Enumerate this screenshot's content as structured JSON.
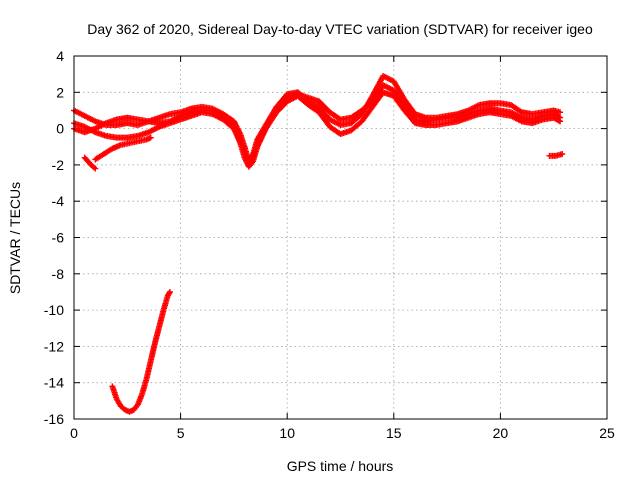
{
  "chart_data": {
    "type": "scatter",
    "title": "Day 362 of 2020, Sidereal Day-to-day VTEC variation (SDTVAR) for receiver igeo",
    "xlabel": "GPS time / hours",
    "ylabel": "SDTVAR / TECUs",
    "xlim": [
      0,
      25
    ],
    "ylim": [
      -16,
      4
    ],
    "grid": true,
    "x_ticks": [
      0,
      5,
      10,
      15,
      20,
      25
    ],
    "y_ticks": [
      -16,
      -14,
      -12,
      -10,
      -8,
      -6,
      -4,
      -2,
      0,
      2,
      4
    ],
    "x_tick_labels": [
      "0",
      "5",
      "10",
      "15",
      "20",
      "25"
    ],
    "y_tick_labels": [
      "-16",
      "-14",
      "-12",
      "-10",
      "-8",
      "-6",
      "-4",
      "-2",
      "0",
      "2",
      "4"
    ],
    "marker": "+",
    "color": "#ff0000",
    "series": [
      {
        "name": "track-1",
        "points": [
          [
            0.0,
            1.0
          ],
          [
            0.5,
            0.7
          ],
          [
            1.0,
            0.4
          ],
          [
            1.5,
            0.2
          ],
          [
            2.0,
            0.2
          ],
          [
            2.5,
            0.3
          ],
          [
            3.0,
            0.2
          ],
          [
            3.5,
            0.4
          ],
          [
            4.0,
            0.6
          ],
          [
            4.5,
            0.8
          ],
          [
            5.0,
            0.9
          ],
          [
            5.5,
            1.1
          ],
          [
            6.0,
            1.2
          ],
          [
            6.5,
            1.1
          ],
          [
            7.0,
            0.8
          ],
          [
            7.5,
            0.4
          ],
          [
            7.8,
            -0.3
          ],
          [
            8.0,
            -1.0
          ],
          [
            8.2,
            -1.8
          ],
          [
            8.4,
            -1.4
          ],
          [
            8.6,
            -0.6
          ],
          [
            9.0,
            0.2
          ],
          [
            9.5,
            1.2
          ],
          [
            10.0,
            1.9
          ],
          [
            10.5,
            2.0
          ],
          [
            11.0,
            1.5
          ],
          [
            11.5,
            1.2
          ],
          [
            12.0,
            0.5
          ],
          [
            12.5,
            0.2
          ],
          [
            13.0,
            0.3
          ],
          [
            13.5,
            0.8
          ],
          [
            14.0,
            1.8
          ],
          [
            14.5,
            2.9
          ],
          [
            15.0,
            2.6
          ],
          [
            15.5,
            1.6
          ],
          [
            16.0,
            0.8
          ],
          [
            16.5,
            0.6
          ],
          [
            17.0,
            0.6
          ],
          [
            17.5,
            0.7
          ],
          [
            18.0,
            0.8
          ],
          [
            18.5,
            1.0
          ],
          [
            19.0,
            1.3
          ],
          [
            19.5,
            1.4
          ],
          [
            20.0,
            1.4
          ],
          [
            20.5,
            1.3
          ],
          [
            21.0,
            0.9
          ],
          [
            21.5,
            0.8
          ],
          [
            22.0,
            0.9
          ],
          [
            22.5,
            1.0
          ],
          [
            22.8,
            0.9
          ]
        ]
      },
      {
        "name": "track-2",
        "points": [
          [
            0.0,
            0.3
          ],
          [
            0.5,
            0.1
          ],
          [
            1.0,
            -0.2
          ],
          [
            1.5,
            -0.4
          ],
          [
            2.0,
            -0.5
          ],
          [
            2.5,
            -0.5
          ],
          [
            3.0,
            -0.4
          ],
          [
            3.5,
            -0.2
          ],
          [
            4.0,
            0.1
          ],
          [
            4.5,
            0.3
          ],
          [
            5.0,
            0.5
          ],
          [
            5.5,
            0.7
          ],
          [
            6.0,
            0.9
          ],
          [
            6.5,
            0.8
          ],
          [
            7.0,
            0.5
          ],
          [
            7.5,
            0.0
          ],
          [
            7.8,
            -0.8
          ],
          [
            8.0,
            -1.6
          ],
          [
            8.2,
            -2.1
          ],
          [
            8.4,
            -1.8
          ],
          [
            8.6,
            -1.0
          ],
          [
            9.0,
            0.0
          ],
          [
            9.5,
            0.9
          ],
          [
            10.0,
            1.5
          ],
          [
            10.5,
            1.8
          ],
          [
            11.0,
            1.3
          ],
          [
            11.5,
            0.9
          ],
          [
            12.0,
            0.1
          ],
          [
            12.5,
            -0.3
          ],
          [
            13.0,
            -0.1
          ],
          [
            13.5,
            0.4
          ],
          [
            14.0,
            1.2
          ],
          [
            14.5,
            2.0
          ],
          [
            15.0,
            1.8
          ],
          [
            15.5,
            1.0
          ],
          [
            16.0,
            0.3
          ],
          [
            16.5,
            0.2
          ],
          [
            17.0,
            0.2
          ],
          [
            17.5,
            0.3
          ],
          [
            18.0,
            0.4
          ],
          [
            18.5,
            0.6
          ],
          [
            19.0,
            0.8
          ],
          [
            19.5,
            0.9
          ],
          [
            20.0,
            0.8
          ],
          [
            20.5,
            0.7
          ],
          [
            21.0,
            0.4
          ],
          [
            21.5,
            0.3
          ],
          [
            22.0,
            0.5
          ],
          [
            22.5,
            0.6
          ],
          [
            22.8,
            0.4
          ]
        ]
      },
      {
        "name": "track-3",
        "points": [
          [
            0.0,
            0.0
          ],
          [
            0.5,
            -0.2
          ],
          [
            1.0,
            0.0
          ],
          [
            1.5,
            0.3
          ],
          [
            2.0,
            0.5
          ],
          [
            2.5,
            0.6
          ],
          [
            3.0,
            0.5
          ],
          [
            3.5,
            0.4
          ],
          [
            4.0,
            0.3
          ],
          [
            4.5,
            0.4
          ],
          [
            5.0,
            0.7
          ],
          [
            5.5,
            0.9
          ],
          [
            6.0,
            1.0
          ],
          [
            6.5,
            1.0
          ],
          [
            7.0,
            0.6
          ],
          [
            7.5,
            0.2
          ],
          [
            7.8,
            -0.5
          ],
          [
            8.0,
            -1.3
          ],
          [
            8.2,
            -1.9
          ],
          [
            8.4,
            -1.6
          ],
          [
            8.6,
            -0.8
          ],
          [
            9.0,
            0.1
          ],
          [
            9.5,
            1.0
          ],
          [
            10.0,
            1.6
          ],
          [
            10.5,
            1.9
          ],
          [
            11.0,
            1.7
          ],
          [
            11.5,
            1.5
          ],
          [
            12.0,
            0.9
          ],
          [
            12.5,
            0.5
          ],
          [
            13.0,
            0.6
          ],
          [
            13.5,
            1.0
          ],
          [
            14.0,
            1.5
          ],
          [
            14.5,
            2.4
          ],
          [
            15.0,
            2.1
          ],
          [
            15.5,
            1.3
          ],
          [
            16.0,
            0.5
          ],
          [
            16.5,
            0.4
          ],
          [
            17.0,
            0.5
          ],
          [
            17.5,
            0.6
          ],
          [
            18.0,
            0.6
          ],
          [
            18.5,
            0.8
          ],
          [
            19.0,
            1.0
          ],
          [
            19.5,
            1.1
          ],
          [
            20.0,
            1.0
          ],
          [
            20.5,
            0.9
          ],
          [
            21.0,
            0.6
          ],
          [
            21.5,
            0.5
          ],
          [
            22.0,
            0.7
          ],
          [
            22.5,
            0.8
          ],
          [
            22.8,
            0.6
          ]
        ]
      },
      {
        "name": "track-4",
        "points": [
          [
            1.0,
            -1.7
          ],
          [
            1.4,
            -1.4
          ],
          [
            1.8,
            -1.1
          ],
          [
            2.2,
            -0.9
          ],
          [
            2.6,
            -0.8
          ],
          [
            3.0,
            -0.7
          ],
          [
            3.4,
            -0.6
          ],
          [
            3.6,
            -0.5
          ]
        ]
      },
      {
        "name": "track-5",
        "points": [
          [
            0.5,
            -1.6
          ],
          [
            0.8,
            -2.0
          ],
          [
            1.0,
            -2.2
          ]
        ]
      },
      {
        "name": "track-6",
        "points": [
          [
            1.8,
            -14.2
          ],
          [
            2.0,
            -14.9
          ],
          [
            2.2,
            -15.3
          ],
          [
            2.4,
            -15.5
          ],
          [
            2.6,
            -15.6
          ],
          [
            2.8,
            -15.5
          ],
          [
            3.0,
            -15.2
          ],
          [
            3.2,
            -14.6
          ],
          [
            3.4,
            -13.8
          ],
          [
            3.6,
            -12.8
          ],
          [
            3.8,
            -11.8
          ],
          [
            4.0,
            -10.9
          ],
          [
            4.2,
            -10.0
          ],
          [
            4.4,
            -9.2
          ],
          [
            4.5,
            -9.0
          ]
        ]
      },
      {
        "name": "track-7",
        "points": [
          [
            22.3,
            -1.5
          ],
          [
            22.6,
            -1.5
          ],
          [
            22.9,
            -1.4
          ]
        ]
      }
    ]
  }
}
